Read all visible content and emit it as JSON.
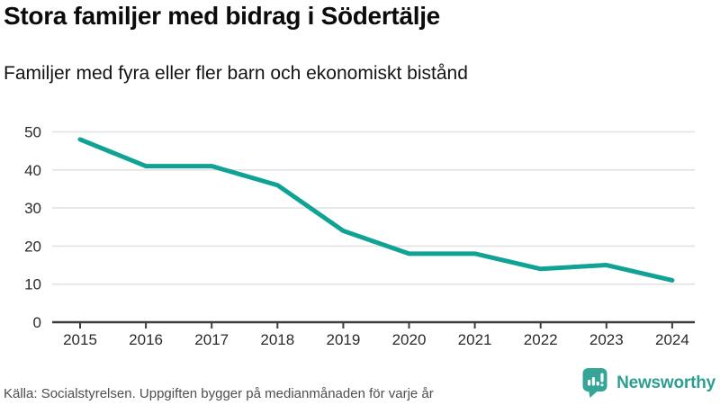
{
  "header": {
    "title": "Stora familjer med bidrag i Södertälje",
    "subtitle": "Familjer med fyra eller fler barn och ekonomiskt bistånd"
  },
  "footer": {
    "source": "Källa: Socialstyrelsen. Uppgiften bygger på medianmånaden för varje år",
    "brand": "Newsworthy"
  },
  "colors": {
    "line": "#10a295",
    "grid": "#e2e2e2",
    "axis": "#3d3d3d",
    "tick_text": "#2b2b2b",
    "logo": "#2e9e93",
    "logo_icon": "#35a597"
  },
  "chart_data": {
    "type": "line",
    "title": "Stora familjer med bidrag i Södertälje",
    "subtitle": "Familjer med fyra eller fler barn och ekonomiskt bistånd",
    "categories": [
      "2015",
      "2016",
      "2017",
      "2018",
      "2019",
      "2020",
      "2021",
      "2022",
      "2023",
      "2024"
    ],
    "values": [
      48,
      41,
      41,
      36,
      24,
      18,
      18,
      14,
      15,
      11
    ],
    "series_name": "Familjer med fyra eller fler barn och ekonomiskt bistånd",
    "xlabel": "",
    "ylabel": "",
    "ylim": [
      0,
      50
    ],
    "y_ticks": [
      0,
      10,
      20,
      30,
      40,
      50
    ],
    "grid": "on",
    "legend": "none",
    "line_color": "#10a295",
    "line_width": 5
  }
}
